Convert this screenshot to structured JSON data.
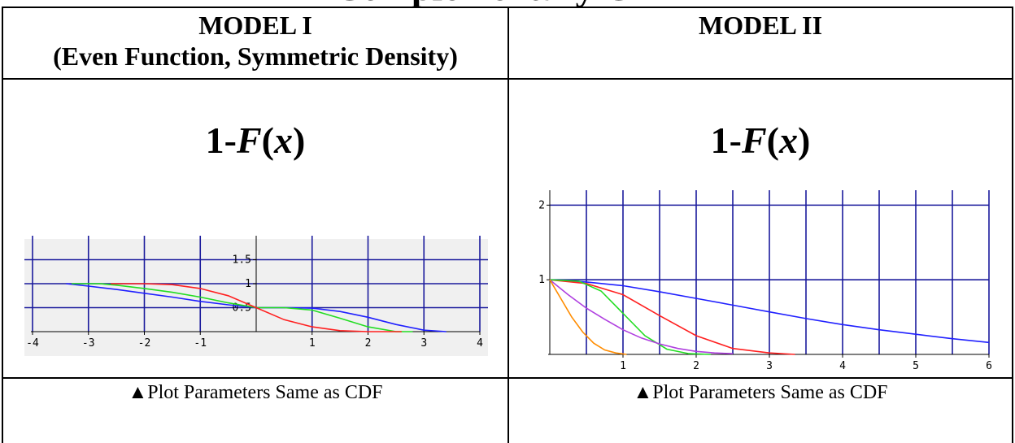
{
  "top_title_fragment": "Complementary CDF",
  "columns": [
    {
      "header_line1": "MODEL I",
      "header_line2": "(Even Function, Symmetric Density)",
      "formula_prefix": "1-",
      "formula_F": "F",
      "formula_paren_open": "(",
      "formula_x": "x",
      "formula_paren_close": ")",
      "caption": "▲Plot Parameters  Same as CDF"
    },
    {
      "header_line1": "MODEL II",
      "formula_prefix": "1-",
      "formula_F": "F",
      "formula_paren_open": "(",
      "formula_x": "x",
      "formula_paren_close": ")",
      "caption": "▲Plot Parameters  Same as CDF"
    }
  ],
  "chart_data": [
    {
      "type": "line",
      "xlim": [
        -4,
        4
      ],
      "ylim": [
        0,
        2
      ],
      "x_ticks": [
        "-4",
        "-3",
        "-2",
        "-1",
        "1",
        "2",
        "3",
        "4"
      ],
      "y_ticks": [
        "0.5",
        "1",
        "1.5"
      ],
      "grid": true,
      "colors": {
        "grid": "#1a1a9c",
        "axis": "#000000",
        "background": "#f0f0f0"
      },
      "series": [
        {
          "color": "#1f1fff",
          "x": [
            -3.4,
            -3,
            -2.5,
            -2,
            -1.5,
            -1,
            -0.5,
            0,
            0.5,
            1,
            1.5,
            2,
            2.5,
            3,
            3.4
          ],
          "y": [
            1.0,
            0.95,
            0.88,
            0.8,
            0.72,
            0.63,
            0.56,
            0.5,
            0.5,
            0.49,
            0.42,
            0.3,
            0.15,
            0.03,
            0.0
          ]
        },
        {
          "color": "#22dd22",
          "x": [
            -3.3,
            -2.8,
            -2.5,
            -2,
            -1.5,
            -1,
            -0.5,
            0,
            0.5,
            1,
            1.5,
            2,
            2.5,
            2.8
          ],
          "y": [
            1.0,
            1.0,
            0.97,
            0.9,
            0.82,
            0.72,
            0.6,
            0.5,
            0.5,
            0.45,
            0.28,
            0.1,
            0.0,
            0.0
          ]
        },
        {
          "color": "#ff2020",
          "x": [
            -2.6,
            -2,
            -1.5,
            -1,
            -0.5,
            0,
            0.5,
            1,
            1.5,
            2,
            2.6
          ],
          "y": [
            1.0,
            1.0,
            0.98,
            0.9,
            0.75,
            0.5,
            0.25,
            0.1,
            0.02,
            0.0,
            0.0
          ]
        }
      ]
    },
    {
      "type": "line",
      "xlim": [
        0,
        6
      ],
      "ylim": [
        0,
        2.2
      ],
      "x_ticks": [
        "1",
        "2",
        "3",
        "4",
        "5",
        "6"
      ],
      "y_ticks": [
        "1",
        "2"
      ],
      "grid": true,
      "colors": {
        "grid": "#1a1a9c",
        "axis": "#000000",
        "background": "#ffffff"
      },
      "series": [
        {
          "color": "#2020ff",
          "x": [
            0,
            0.5,
            1,
            1.5,
            2,
            2.5,
            3,
            3.5,
            4,
            4.5,
            5,
            5.5,
            6
          ],
          "y": [
            1.0,
            0.97,
            0.92,
            0.84,
            0.75,
            0.66,
            0.57,
            0.48,
            0.4,
            0.33,
            0.27,
            0.21,
            0.16
          ]
        },
        {
          "color": "#ff2020",
          "x": [
            0,
            0.5,
            1,
            1.5,
            2,
            2.5,
            3,
            3.35
          ],
          "y": [
            1.0,
            0.95,
            0.8,
            0.52,
            0.25,
            0.08,
            0.02,
            0.0
          ]
        },
        {
          "color": "#22dd22",
          "x": [
            0,
            0.4,
            0.7,
            1,
            1.3,
            1.6,
            1.9,
            2.2
          ],
          "y": [
            1.0,
            0.98,
            0.85,
            0.55,
            0.25,
            0.07,
            0.01,
            0.0
          ]
        },
        {
          "color": "#b040e0",
          "x": [
            0,
            0.25,
            0.5,
            0.75,
            1,
            1.25,
            1.5,
            1.75,
            2,
            2.25,
            2.5
          ],
          "y": [
            1.0,
            0.8,
            0.62,
            0.47,
            0.33,
            0.22,
            0.14,
            0.08,
            0.04,
            0.02,
            0.01
          ]
        },
        {
          "color": "#ff8c00",
          "x": [
            0,
            0.15,
            0.3,
            0.45,
            0.6,
            0.75,
            0.9,
            1.05
          ],
          "y": [
            1.0,
            0.75,
            0.5,
            0.3,
            0.15,
            0.06,
            0.02,
            0.0
          ]
        }
      ]
    }
  ]
}
